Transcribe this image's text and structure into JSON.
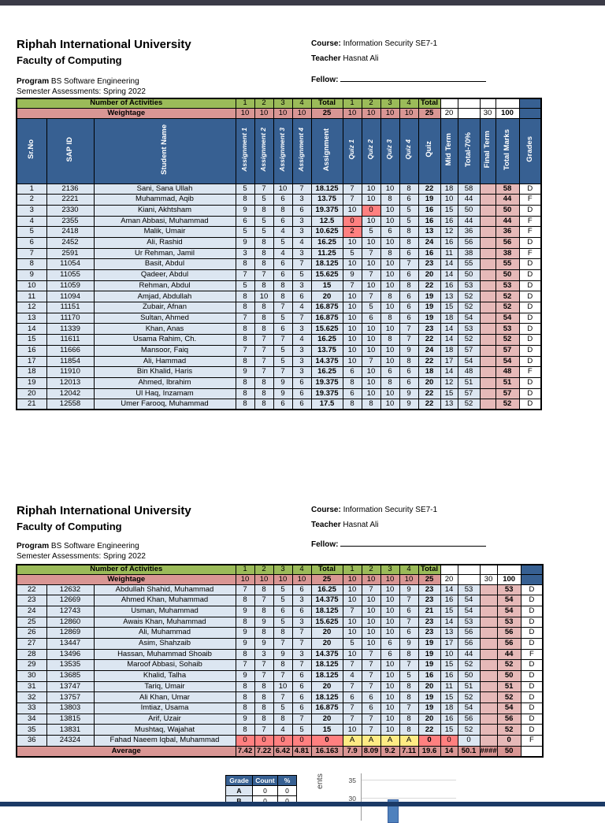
{
  "doc_header": {
    "university": "Riphah International University",
    "faculty": "Faculty of Computing",
    "program_label": "Program",
    "program_value": "BS Software Engineering",
    "semester": "Semester Assessments: Spring 2022",
    "course_label": "Course:",
    "course_value": "Information Security SE7-1",
    "teacher_label": "Teacher",
    "teacher_value": "Hasnat Ali",
    "fellow_label": "Fellow:"
  },
  "table": {
    "activities_label": "Number of Activities",
    "weightage_label": "Weightage",
    "activities_cells": [
      "1",
      "2",
      "3",
      "4",
      "Total",
      "1",
      "2",
      "3",
      "4",
      "Total",
      "",
      "",
      "",
      ""
    ],
    "weightage_cells": [
      "10",
      "10",
      "10",
      "10",
      "25",
      "10",
      "10",
      "10",
      "10",
      "25",
      "20",
      "",
      "30",
      "100"
    ],
    "column_headers": [
      "Sr.No",
      "SAP ID",
      "Student Name",
      "Assignment 1",
      "Assignment 2",
      "Assignment 3",
      "Assignment 4",
      "Assignment",
      "Quiz 1",
      "Quiz 2",
      "Quiz 3",
      "Quiz 4",
      "Quiz",
      "Mid Term",
      "Total-70%",
      "Final Term",
      "Total Marks",
      "Grades"
    ],
    "average_label": "Average",
    "average_cells": [
      "7.42",
      "7.22",
      "6.42",
      "4.81",
      "16.163",
      "7.9",
      "8.09",
      "9.2",
      "7.11",
      "19.6",
      "14",
      "50.1",
      "####",
      "50"
    ],
    "rows_page1": [
      {
        "sr": "1",
        "sap": "2136",
        "name": "Sani, Sana Ullah",
        "s": [
          "5",
          "7",
          "10",
          "7",
          "18.125",
          "7",
          "10",
          "10",
          "8",
          "22",
          "18",
          "58",
          "",
          "58"
        ],
        "g": "D"
      },
      {
        "sr": "2",
        "sap": "2221",
        "name": "Muhammad, Aqib",
        "s": [
          "8",
          "5",
          "6",
          "3",
          "13.75",
          "7",
          "10",
          "8",
          "6",
          "19",
          "10",
          "44",
          "",
          "44"
        ],
        "g": "F"
      },
      {
        "sr": "3",
        "sap": "2330",
        "name": "Kiani, Akhtsham",
        "s": [
          "9",
          "8",
          "8",
          "6",
          "19.375",
          "10",
          "0",
          "10",
          "5",
          "16",
          "15",
          "50",
          "",
          "50"
        ],
        "g": "D",
        "red": [
          6
        ]
      },
      {
        "sr": "4",
        "sap": "2355",
        "name": "Aman Abbasi, Muhammad",
        "s": [
          "6",
          "5",
          "6",
          "3",
          "12.5",
          "0",
          "10",
          "10",
          "5",
          "16",
          "16",
          "44",
          "",
          "44"
        ],
        "g": "F",
        "red": [
          5
        ]
      },
      {
        "sr": "5",
        "sap": "2418",
        "name": "Malik, Umair",
        "s": [
          "5",
          "5",
          "4",
          "3",
          "10.625",
          "2",
          "5",
          "6",
          "8",
          "13",
          "12",
          "36",
          "",
          "36"
        ],
        "g": "F",
        "red": [
          5
        ]
      },
      {
        "sr": "6",
        "sap": "2452",
        "name": "Ali, Rashid",
        "s": [
          "9",
          "8",
          "5",
          "4",
          "16.25",
          "10",
          "10",
          "10",
          "8",
          "24",
          "16",
          "56",
          "",
          "56"
        ],
        "g": "D"
      },
      {
        "sr": "7",
        "sap": "2591",
        "name": "Ur Rehman, Jamil",
        "s": [
          "3",
          "8",
          "4",
          "3",
          "11.25",
          "5",
          "7",
          "8",
          "6",
          "16",
          "11",
          "38",
          "",
          "38"
        ],
        "g": "F"
      },
      {
        "sr": "8",
        "sap": "11054",
        "name": "Basit, Abdul",
        "s": [
          "8",
          "8",
          "6",
          "7",
          "18.125",
          "10",
          "10",
          "10",
          "7",
          "23",
          "14",
          "55",
          "",
          "55"
        ],
        "g": "D"
      },
      {
        "sr": "9",
        "sap": "11055",
        "name": "Qadeer, Abdul",
        "s": [
          "7",
          "7",
          "6",
          "5",
          "15.625",
          "9",
          "7",
          "10",
          "6",
          "20",
          "14",
          "50",
          "",
          "50"
        ],
        "g": "D"
      },
      {
        "sr": "10",
        "sap": "11059",
        "name": "Rehman, Abdul",
        "s": [
          "5",
          "8",
          "8",
          "3",
          "15",
          "7",
          "10",
          "10",
          "8",
          "22",
          "16",
          "53",
          "",
          "53"
        ],
        "g": "D"
      },
      {
        "sr": "11",
        "sap": "11094",
        "name": "Amjad, Abdullah",
        "s": [
          "8",
          "10",
          "8",
          "6",
          "20",
          "10",
          "7",
          "8",
          "6",
          "19",
          "13",
          "52",
          "",
          "52"
        ],
        "g": "D"
      },
      {
        "sr": "12",
        "sap": "11151",
        "name": "Zubair, Afnan",
        "s": [
          "8",
          "8",
          "7",
          "4",
          "16.875",
          "10",
          "5",
          "10",
          "6",
          "19",
          "15",
          "52",
          "",
          "52"
        ],
        "g": "D"
      },
      {
        "sr": "13",
        "sap": "11170",
        "name": "Sultan, Ahmed",
        "s": [
          "7",
          "8",
          "5",
          "7",
          "16.875",
          "10",
          "6",
          "8",
          "6",
          "19",
          "18",
          "54",
          "",
          "54"
        ],
        "g": "D"
      },
      {
        "sr": "14",
        "sap": "11339",
        "name": "Khan, Anas",
        "s": [
          "8",
          "8",
          "6",
          "3",
          "15.625",
          "10",
          "10",
          "10",
          "7",
          "23",
          "14",
          "53",
          "",
          "53"
        ],
        "g": "D"
      },
      {
        "sr": "15",
        "sap": "11611",
        "name": "Usama Rahim, Ch.",
        "s": [
          "8",
          "7",
          "7",
          "4",
          "16.25",
          "10",
          "10",
          "8",
          "7",
          "22",
          "14",
          "52",
          "",
          "52"
        ],
        "g": "D"
      },
      {
        "sr": "16",
        "sap": "11666",
        "name": "Mansoor, Faiq",
        "s": [
          "7",
          "7",
          "5",
          "3",
          "13.75",
          "10",
          "10",
          "10",
          "9",
          "24",
          "18",
          "57",
          "",
          "57"
        ],
        "g": "D"
      },
      {
        "sr": "17",
        "sap": "11854",
        "name": "Ali, Hammad",
        "s": [
          "8",
          "7",
          "5",
          "3",
          "14.375",
          "10",
          "7",
          "10",
          "8",
          "22",
          "17",
          "54",
          "",
          "54"
        ],
        "g": "D"
      },
      {
        "sr": "18",
        "sap": "11910",
        "name": "Bin Khalid, Haris",
        "s": [
          "9",
          "7",
          "7",
          "3",
          "16.25",
          "6",
          "10",
          "6",
          "6",
          "18",
          "14",
          "48",
          "",
          "48"
        ],
        "g": "F"
      },
      {
        "sr": "19",
        "sap": "12013",
        "name": "Ahmed, Ibrahim",
        "s": [
          "8",
          "8",
          "9",
          "6",
          "19.375",
          "8",
          "10",
          "8",
          "6",
          "20",
          "12",
          "51",
          "",
          "51"
        ],
        "g": "D"
      },
      {
        "sr": "20",
        "sap": "12042",
        "name": "Ul Haq, Inzamam",
        "s": [
          "8",
          "8",
          "9",
          "6",
          "19.375",
          "6",
          "10",
          "10",
          "9",
          "22",
          "15",
          "57",
          "",
          "57"
        ],
        "g": "D"
      },
      {
        "sr": "21",
        "sap": "12558",
        "name": "Umer Farooq, Muhammad",
        "s": [
          "8",
          "8",
          "6",
          "6",
          "17.5",
          "8",
          "8",
          "10",
          "9",
          "22",
          "13",
          "52",
          "",
          "52"
        ],
        "g": "D"
      }
    ],
    "rows_page2": [
      {
        "sr": "22",
        "sap": "12632",
        "name": "Abdullah Shahid, Muhammad",
        "s": [
          "7",
          "8",
          "5",
          "6",
          "16.25",
          "10",
          "7",
          "10",
          "9",
          "23",
          "14",
          "53",
          "",
          "53"
        ],
        "g": "D"
      },
      {
        "sr": "23",
        "sap": "12669",
        "name": "Ahmed Khan, Muhammad",
        "s": [
          "8",
          "7",
          "5",
          "3",
          "14.375",
          "10",
          "10",
          "10",
          "7",
          "23",
          "16",
          "54",
          "",
          "54"
        ],
        "g": "D"
      },
      {
        "sr": "24",
        "sap": "12743",
        "name": "Usman, Muhammad",
        "s": [
          "9",
          "8",
          "6",
          "6",
          "18.125",
          "7",
          "10",
          "10",
          "6",
          "21",
          "15",
          "54",
          "",
          "54"
        ],
        "g": "D"
      },
      {
        "sr": "25",
        "sap": "12860",
        "name": "Awais Khan, Muhammad",
        "s": [
          "8",
          "9",
          "5",
          "3",
          "15.625",
          "10",
          "10",
          "10",
          "7",
          "23",
          "14",
          "53",
          "",
          "53"
        ],
        "g": "D"
      },
      {
        "sr": "26",
        "sap": "12869",
        "name": "Ali, Muhammad",
        "s": [
          "9",
          "8",
          "8",
          "7",
          "20",
          "10",
          "10",
          "10",
          "6",
          "23",
          "13",
          "56",
          "",
          "56"
        ],
        "g": "D"
      },
      {
        "sr": "27",
        "sap": "13447",
        "name": "Asim, Shahzaib",
        "s": [
          "9",
          "9",
          "7",
          "7",
          "20",
          "5",
          "10",
          "6",
          "9",
          "19",
          "17",
          "56",
          "",
          "56"
        ],
        "g": "D"
      },
      {
        "sr": "28",
        "sap": "13496",
        "name": "Hassan, Muhammad Shoaib",
        "s": [
          "8",
          "3",
          "9",
          "3",
          "14.375",
          "10",
          "7",
          "6",
          "8",
          "19",
          "10",
          "44",
          "",
          "44"
        ],
        "g": "F"
      },
      {
        "sr": "29",
        "sap": "13535",
        "name": "Maroof Abbasi, Sohaib",
        "s": [
          "7",
          "7",
          "8",
          "7",
          "18.125",
          "7",
          "7",
          "10",
          "7",
          "19",
          "15",
          "52",
          "",
          "52"
        ],
        "g": "D"
      },
      {
        "sr": "30",
        "sap": "13685",
        "name": "Khalid, Talha",
        "s": [
          "9",
          "7",
          "7",
          "6",
          "18.125",
          "4",
          "7",
          "10",
          "5",
          "16",
          "16",
          "50",
          "",
          "50"
        ],
        "g": "D"
      },
      {
        "sr": "31",
        "sap": "13747",
        "name": "Tariq, Umair",
        "s": [
          "8",
          "8",
          "10",
          "6",
          "20",
          "7",
          "7",
          "10",
          "8",
          "20",
          "11",
          "51",
          "",
          "51"
        ],
        "g": "D"
      },
      {
        "sr": "32",
        "sap": "13757",
        "name": "Ali Khan, Umar",
        "s": [
          "8",
          "8",
          "7",
          "6",
          "18.125",
          "6",
          "6",
          "10",
          "8",
          "19",
          "15",
          "52",
          "",
          "52"
        ],
        "g": "D"
      },
      {
        "sr": "33",
        "sap": "13803",
        "name": "Imtiaz, Usama",
        "s": [
          "8",
          "8",
          "5",
          "6",
          "16.875",
          "7",
          "6",
          "10",
          "7",
          "19",
          "18",
          "54",
          "",
          "54"
        ],
        "g": "D"
      },
      {
        "sr": "34",
        "sap": "13815",
        "name": "Arif, Uzair",
        "s": [
          "9",
          "8",
          "8",
          "7",
          "20",
          "7",
          "7",
          "10",
          "8",
          "20",
          "16",
          "56",
          "",
          "56"
        ],
        "g": "D"
      },
      {
        "sr": "35",
        "sap": "13831",
        "name": "Mushtaq, Wajahat",
        "s": [
          "8",
          "7",
          "4",
          "5",
          "15",
          "10",
          "7",
          "10",
          "8",
          "22",
          "15",
          "52",
          "",
          "52"
        ],
        "g": "D"
      },
      {
        "sr": "36",
        "sap": "24324",
        "name": "Fahad Naeem Iqbal, Muhammad",
        "s": [
          "0",
          "0",
          "0",
          "0",
          "0",
          "A",
          "A",
          "A",
          "A",
          "0",
          "0",
          "0",
          "",
          "0"
        ],
        "g": "F",
        "red": [
          0,
          1,
          2,
          3,
          4,
          9,
          10
        ],
        "yellow": [
          5,
          6,
          7,
          8
        ]
      }
    ]
  },
  "grade_summary": {
    "headers": [
      "Grade",
      "Count",
      "%"
    ],
    "rows": [
      [
        "A",
        "0",
        "0"
      ],
      [
        "B",
        "0",
        "0"
      ]
    ]
  },
  "chart_fragment": {
    "ylabel_visible": "ents",
    "yticks": [
      "35",
      "30"
    ]
  },
  "colors": {
    "header_blue": "#376092",
    "activities_green": "#9bbb59",
    "weightage_pink": "#d99694",
    "row_blue": "#dce6f1",
    "marks_pink": "#e6b9b8",
    "alert_red": "#ff8080",
    "absent_yellow": "#ffeb84",
    "bar_blue": "#4f81bd"
  }
}
